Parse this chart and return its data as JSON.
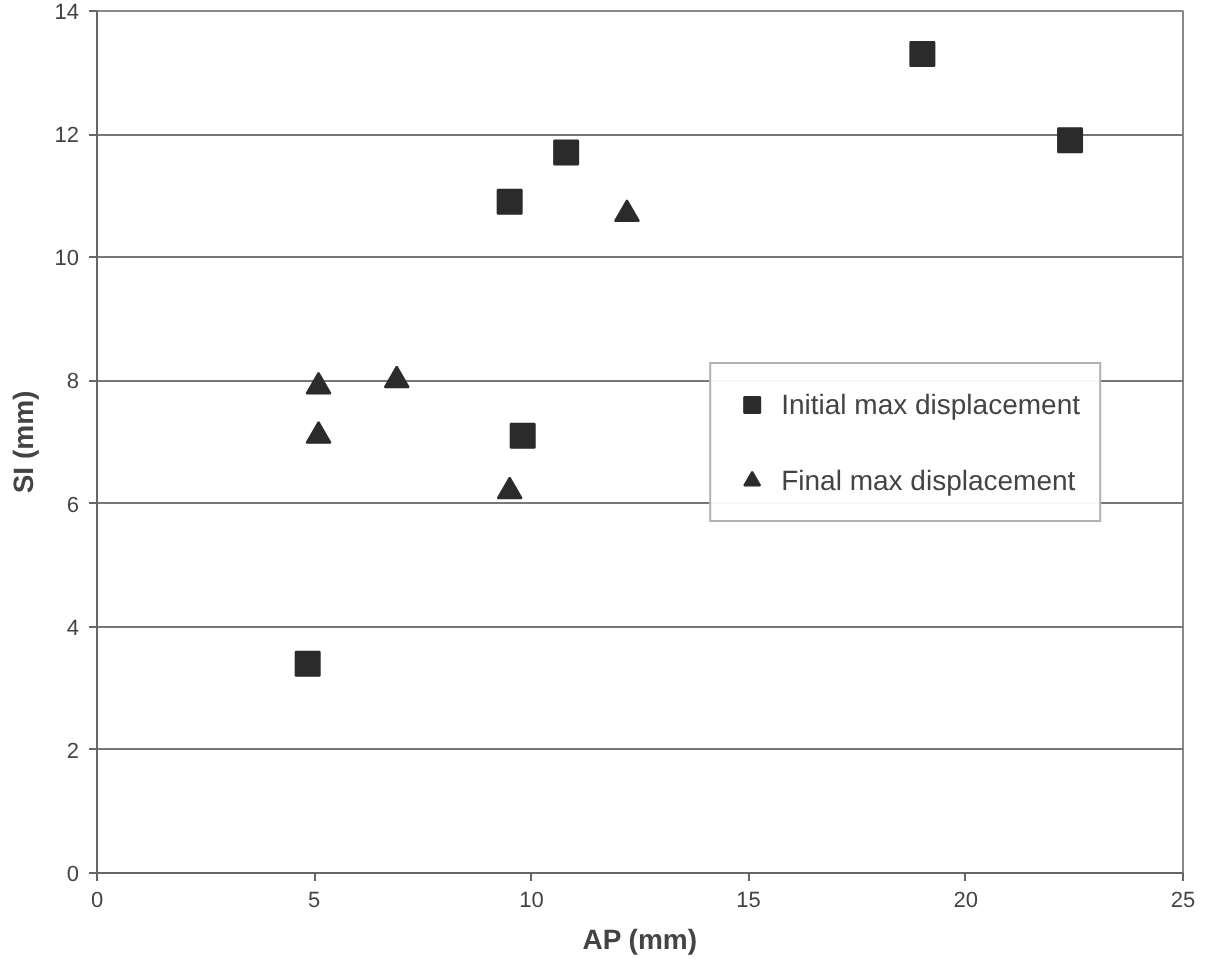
{
  "chart_data": {
    "type": "scatter",
    "xlabel": "AP (mm)",
    "ylabel": "SI (mm)",
    "xlim": [
      0,
      25
    ],
    "xticks": [
      0,
      5,
      10,
      15,
      20,
      25
    ],
    "ylim": [
      0,
      14
    ],
    "yticks": [
      0,
      2,
      4,
      6,
      8,
      10,
      12,
      14
    ],
    "grid": "y",
    "legend": "right",
    "series": [
      {
        "name": "Initial max displacement",
        "color": "#2b2b2b",
        "marker": "square",
        "x": [
          4.85,
          9.5,
          9.8,
          10.8,
          19.0,
          22.4
        ],
        "values": [
          3.4,
          10.9,
          7.1,
          11.7,
          13.3,
          11.9
        ]
      },
      {
        "name": "Final max displacement",
        "color": "#2b2b2b",
        "marker": "triangle",
        "x": [
          5.1,
          5.1,
          6.9,
          9.5,
          12.2
        ],
        "values": [
          7.9,
          7.1,
          8.0,
          6.2,
          10.7
        ]
      }
    ]
  }
}
